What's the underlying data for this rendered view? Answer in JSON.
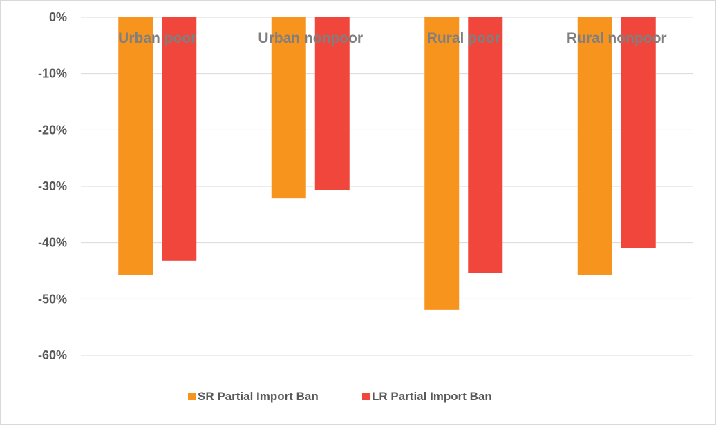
{
  "chart_data": {
    "type": "bar",
    "title": "",
    "xlabel": "",
    "ylabel": "",
    "categories": [
      "Urban poor",
      "Urban nonpoor",
      "Rural poor",
      "Rural nonpoor"
    ],
    "series": [
      {
        "name": "SR Partial Import Ban",
        "color": "#f7941d",
        "values": [
          -45.7,
          -32.1,
          -51.9,
          -45.7
        ]
      },
      {
        "name": "LR Partial Import Ban",
        "color": "#f0463c",
        "values": [
          -43.2,
          -30.7,
          -45.4,
          -40.9
        ]
      }
    ],
    "ylim": [
      -60,
      0
    ],
    "yticks": [
      0,
      -10,
      -20,
      -30,
      -40,
      -50,
      -60
    ],
    "ytick_labels": [
      "0%",
      "-10%",
      "-20%",
      "-30%",
      "-40%",
      "-50%",
      "-60%"
    ],
    "grid": true,
    "gridline_color": "#d9d9d9",
    "legend_position": "bottom",
    "category_label_position": "top"
  }
}
